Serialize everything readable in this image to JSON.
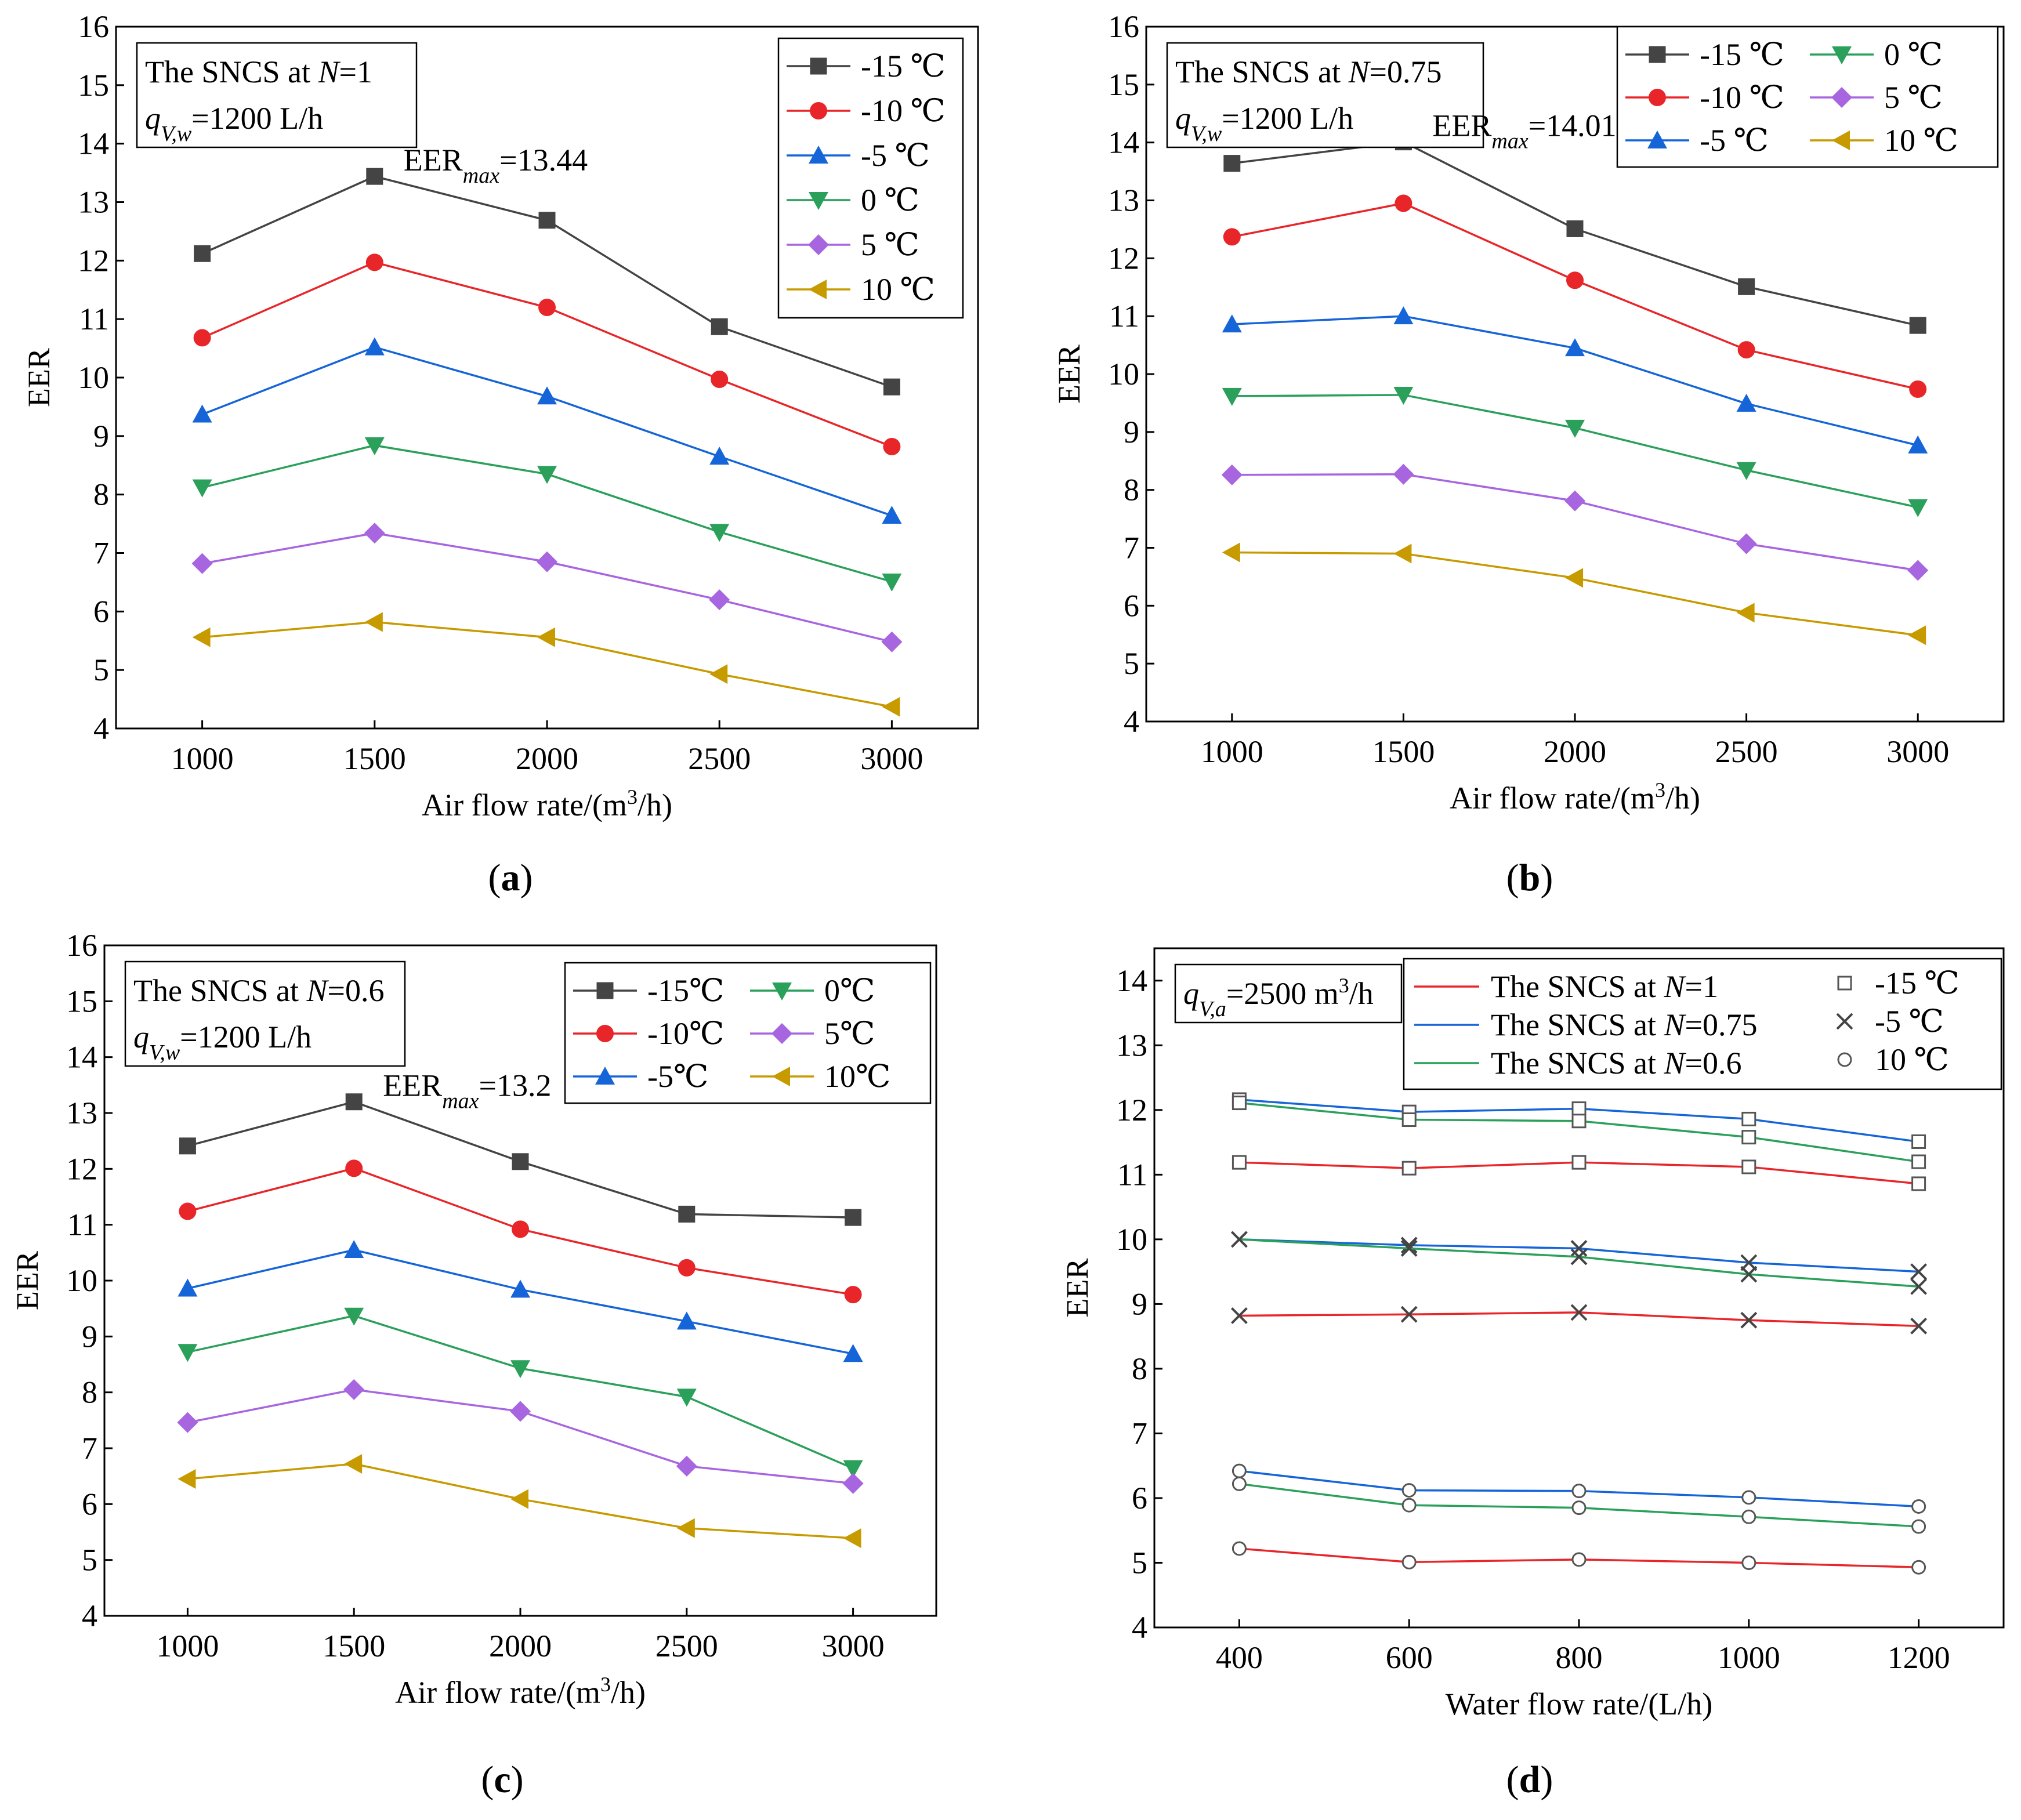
{
  "chart_data": [
    {
      "id": "a",
      "type": "line",
      "panel_label": "a",
      "title": "",
      "annotation_box": {
        "line1": {
          "pre": "The SNCS at ",
          "italic": "N",
          "post": "=1"
        },
        "line2": {
          "sym": "q",
          "sub": "V,w",
          "post": "=1200 L/h"
        }
      },
      "peak_annotation": {
        "pre": "EER",
        "sub": "max",
        "post": "=13.44"
      },
      "xlabel": "Air flow rate/(m³/h)",
      "ylabel": "EER",
      "xlim": [
        750,
        3250
      ],
      "ylim": [
        4,
        16
      ],
      "x_ticks": [
        1000,
        1500,
        2000,
        2500,
        3000
      ],
      "y_ticks": [
        4,
        5,
        6,
        7,
        8,
        9,
        10,
        11,
        12,
        13,
        14,
        15,
        16
      ],
      "legend_position": "top-right",
      "legend_columns": 1,
      "x": [
        1000,
        1500,
        2000,
        2500,
        3000
      ],
      "series": [
        {
          "name": "-15 ℃",
          "color": "#444444",
          "marker": "square",
          "values": [
            12.12,
            13.44,
            12.69,
            10.87,
            9.84
          ]
        },
        {
          "name": "-10 ℃",
          "color": "#e8262a",
          "marker": "circle",
          "values": [
            10.68,
            11.97,
            11.2,
            9.97,
            8.82
          ]
        },
        {
          "name": "-5 ℃",
          "color": "#1565d8",
          "marker": "triangle-up",
          "values": [
            9.37,
            10.52,
            9.68,
            8.65,
            7.64
          ]
        },
        {
          "name": "0 ℃",
          "color": "#2aa05a",
          "marker": "triangle-down",
          "values": [
            8.12,
            8.84,
            8.35,
            7.36,
            6.51
          ]
        },
        {
          "name": "5 ℃",
          "color": "#a865e0",
          "marker": "diamond",
          "values": [
            6.82,
            7.34,
            6.85,
            6.2,
            5.48
          ]
        },
        {
          "name": "10 ℃",
          "color": "#c79a00",
          "marker": "triangle-left",
          "values": [
            5.56,
            5.82,
            5.56,
            4.93,
            4.37
          ]
        }
      ]
    },
    {
      "id": "b",
      "type": "line",
      "panel_label": "b",
      "title": "",
      "annotation_box": {
        "line1": {
          "pre": "The SNCS at ",
          "italic": "N",
          "post": "=0.75"
        },
        "line2": {
          "sym": "q",
          "sub": "V,w",
          "post": "=1200 L/h"
        }
      },
      "peak_annotation": {
        "pre": "EER",
        "sub": "max",
        "post": "=14.01"
      },
      "xlabel": "Air flow rate/(m³/h)",
      "ylabel": "EER",
      "xlim": [
        750,
        3250
      ],
      "ylim": [
        4,
        16
      ],
      "x_ticks": [
        1000,
        1500,
        2000,
        2500,
        3000
      ],
      "y_ticks": [
        4,
        5,
        6,
        7,
        8,
        9,
        10,
        11,
        12,
        13,
        14,
        15,
        16
      ],
      "legend_position": "top-right",
      "legend_columns": 2,
      "x": [
        1000,
        1500,
        2000,
        2500,
        3000
      ],
      "series": [
        {
          "name": "-15 ℃",
          "color": "#444444",
          "marker": "square",
          "values": [
            13.64,
            14.01,
            12.51,
            11.51,
            10.84
          ]
        },
        {
          "name": "-10 ℃",
          "color": "#e8262a",
          "marker": "circle",
          "values": [
            12.37,
            12.95,
            11.62,
            10.42,
            9.74
          ]
        },
        {
          "name": "-5 ℃",
          "color": "#1565d8",
          "marker": "triangle-up",
          "values": [
            10.86,
            11.0,
            10.45,
            9.49,
            8.77
          ]
        },
        {
          "name": "0 ℃",
          "color": "#2aa05a",
          "marker": "triangle-down",
          "values": [
            9.62,
            9.64,
            9.07,
            8.34,
            7.7
          ]
        },
        {
          "name": "5 ℃",
          "color": "#a865e0",
          "marker": "diamond",
          "values": [
            8.26,
            8.27,
            7.81,
            7.07,
            6.61
          ]
        },
        {
          "name": "10 ℃",
          "color": "#c79a00",
          "marker": "triangle-left",
          "values": [
            6.92,
            6.9,
            6.48,
            5.88,
            5.49
          ]
        }
      ]
    },
    {
      "id": "c",
      "type": "line",
      "panel_label": "c",
      "title": "",
      "annotation_box": {
        "line1": {
          "pre": "The SNCS at ",
          "italic": "N",
          "post": "=0.6"
        },
        "line2": {
          "sym": "q",
          "sub": "V,w",
          "post": "=1200 L/h"
        }
      },
      "peak_annotation": {
        "pre": "EER",
        "sub": "max",
        "post": "=13.2"
      },
      "xlabel": "Air flow rate/(m³/h)",
      "ylabel": "EER",
      "xlim": [
        750,
        3250
      ],
      "ylim": [
        4,
        16
      ],
      "x_ticks": [
        1000,
        1500,
        2000,
        2500,
        3000
      ],
      "y_ticks": [
        4,
        5,
        6,
        7,
        8,
        9,
        10,
        11,
        12,
        13,
        14,
        15,
        16
      ],
      "legend_position": "top-right",
      "legend_columns": 2,
      "x": [
        1000,
        1500,
        2000,
        2500,
        3000
      ],
      "series": [
        {
          "name": "-15℃",
          "color": "#444444",
          "marker": "square",
          "values": [
            12.41,
            13.2,
            12.13,
            11.19,
            11.13
          ]
        },
        {
          "name": "-10℃",
          "color": "#e8262a",
          "marker": "circle",
          "values": [
            11.24,
            12.01,
            10.92,
            10.23,
            9.75
          ]
        },
        {
          "name": "-5℃",
          "color": "#1565d8",
          "marker": "triangle-up",
          "values": [
            9.86,
            10.55,
            9.84,
            9.27,
            8.69
          ]
        },
        {
          "name": "0℃",
          "color": "#2aa05a",
          "marker": "triangle-down",
          "values": [
            8.72,
            9.37,
            8.43,
            7.92,
            6.64
          ]
        },
        {
          "name": "5℃",
          "color": "#a865e0",
          "marker": "diamond",
          "values": [
            7.46,
            8.05,
            7.66,
            6.68,
            6.37
          ]
        },
        {
          "name": "10℃",
          "color": "#c79a00",
          "marker": "triangle-left",
          "values": [
            6.45,
            6.72,
            6.09,
            5.57,
            5.39
          ]
        }
      ]
    },
    {
      "id": "d",
      "type": "line",
      "panel_label": "d",
      "title": "",
      "annotation_box": {
        "line1": {
          "sym": "q",
          "sub": "V,a",
          "post": "=2500 m",
          "sup": "3",
          "tail": "/h"
        }
      },
      "xlabel": "Water flow rate/(L/h)",
      "ylabel": "EER",
      "xlim": [
        300,
        1300
      ],
      "ylim": [
        4,
        14.5
      ],
      "x_ticks": [
        400,
        600,
        800,
        1000,
        1200
      ],
      "y_ticks": [
        4,
        5,
        6,
        7,
        8,
        9,
        10,
        11,
        12,
        13,
        14
      ],
      "legend_position": "top-right",
      "line_legend": [
        {
          "pre": "The SNCS at ",
          "italic": "N",
          "post": "=1",
          "color": "#e8262a"
        },
        {
          "pre": "The SNCS at ",
          "italic": "N",
          "post": "=0.75",
          "color": "#1565d8"
        },
        {
          "pre": "The SNCS at ",
          "italic": "N",
          "post": "=0.6",
          "color": "#2aa05a"
        }
      ],
      "marker_legend": [
        {
          "name": "-15 ℃",
          "marker": "open-square"
        },
        {
          "name": "-5 ℃",
          "marker": "x"
        },
        {
          "name": "10 ℃",
          "marker": "open-circle"
        }
      ],
      "x": [
        400,
        600,
        800,
        1000,
        1200
      ],
      "series": [
        {
          "color": "#e8262a",
          "marker": "open-square",
          "values": [
            11.19,
            11.1,
            11.19,
            11.12,
            10.86
          ]
        },
        {
          "color": "#1565d8",
          "marker": "open-square",
          "values": [
            12.16,
            11.97,
            12.02,
            11.86,
            11.51
          ]
        },
        {
          "color": "#2aa05a",
          "marker": "open-square",
          "values": [
            12.11,
            11.85,
            11.83,
            11.58,
            11.2
          ]
        },
        {
          "color": "#e8262a",
          "marker": "x",
          "values": [
            8.82,
            8.84,
            8.87,
            8.75,
            8.66
          ]
        },
        {
          "color": "#1565d8",
          "marker": "x",
          "values": [
            10.0,
            9.91,
            9.86,
            9.64,
            9.5
          ]
        },
        {
          "color": "#2aa05a",
          "marker": "x",
          "values": [
            10.0,
            9.86,
            9.73,
            9.46,
            9.27
          ]
        },
        {
          "color": "#e8262a",
          "marker": "open-circle",
          "values": [
            5.22,
            5.01,
            5.05,
            5.0,
            4.93
          ]
        },
        {
          "color": "#1565d8",
          "marker": "open-circle",
          "values": [
            6.42,
            6.12,
            6.11,
            6.01,
            5.87
          ]
        },
        {
          "color": "#2aa05a",
          "marker": "open-circle",
          "values": [
            6.22,
            5.89,
            5.85,
            5.71,
            5.56
          ]
        }
      ]
    }
  ]
}
